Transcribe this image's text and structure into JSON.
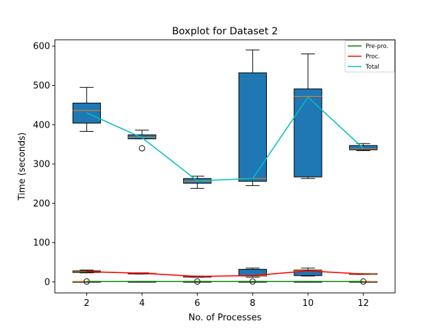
{
  "chart_data": {
    "type": "box",
    "title": "Boxplot for Dataset 2",
    "xlabel": "No. of Processes",
    "ylabel": "Time (seconds)",
    "x": [
      2,
      4,
      6,
      8,
      10,
      12
    ],
    "xlim": [
      0.85,
      13.15
    ],
    "ylim": [
      -28,
      616
    ],
    "yticks": [
      0,
      100,
      200,
      300,
      400,
      500,
      600
    ],
    "legend_position": "top-right",
    "colors": {
      "box_fill": "#1f77b4",
      "median": "#ff7f0e",
      "Pre-pro.": "#008000",
      "Proc.": "#ff0000",
      "Total": "#00bfbf"
    },
    "series": [
      {
        "name": "Total",
        "line": [
          430,
          367,
          257,
          263,
          470,
          340
        ],
        "boxes": [
          {
            "x": 2,
            "whisker_low": 383,
            "q1": 404,
            "median": 436,
            "q3": 455,
            "whisker_high": 495,
            "fliers": []
          },
          {
            "x": 4,
            "whisker_low": 364,
            "q1": 364,
            "median": 368,
            "q3": 374,
            "whisker_high": 386,
            "fliers": [
              340
            ]
          },
          {
            "x": 6,
            "whisker_low": 238,
            "q1": 251,
            "median": 256,
            "q3": 263,
            "whisker_high": 269,
            "fliers": []
          },
          {
            "x": 8,
            "whisker_low": 245,
            "q1": 256,
            "median": 263,
            "q3": 532,
            "whisker_high": 590,
            "fliers": []
          },
          {
            "x": 10,
            "whisker_low": 263,
            "q1": 267,
            "median": 472,
            "q3": 491,
            "whisker_high": 580,
            "fliers": []
          },
          {
            "x": 12,
            "whisker_low": 334,
            "q1": 336,
            "median": 338,
            "q3": 347,
            "whisker_high": 352,
            "fliers": []
          }
        ]
      },
      {
        "name": "Proc.",
        "line": [
          26,
          22,
          14,
          16,
          28,
          20
        ],
        "boxes": [
          {
            "x": 2,
            "whisker_low": 23,
            "q1": 24,
            "median": 26,
            "q3": 28,
            "whisker_high": 30,
            "fliers": []
          },
          {
            "x": 4,
            "whisker_low": 20,
            "q1": 21,
            "median": 22,
            "q3": 22,
            "whisker_high": 23,
            "fliers": []
          },
          {
            "x": 6,
            "whisker_low": 12,
            "q1": 13,
            "median": 14,
            "q3": 14,
            "whisker_high": 15,
            "fliers": []
          },
          {
            "x": 8,
            "whisker_low": 12,
            "q1": 15,
            "median": 16,
            "q3": 32,
            "whisker_high": 35,
            "fliers": []
          },
          {
            "x": 10,
            "whisker_low": 15,
            "q1": 16,
            "median": 28,
            "q3": 30,
            "whisker_high": 35,
            "fliers": []
          },
          {
            "x": 12,
            "whisker_low": 19,
            "q1": 19,
            "median": 20,
            "q3": 21,
            "whisker_high": 21,
            "fliers": []
          }
        ]
      },
      {
        "name": "Pre-pro.",
        "line": [
          1,
          1,
          1,
          1,
          1,
          1
        ],
        "boxes": [
          {
            "x": 2,
            "whisker_low": 0,
            "q1": 0,
            "median": 1,
            "q3": 1,
            "whisker_high": 1,
            "fliers": [
              1
            ]
          },
          {
            "x": 4,
            "whisker_low": 0,
            "q1": 0,
            "median": 1,
            "q3": 1,
            "whisker_high": 1,
            "fliers": []
          },
          {
            "x": 6,
            "whisker_low": 0,
            "q1": 0,
            "median": 1,
            "q3": 1,
            "whisker_high": 1,
            "fliers": [
              1
            ]
          },
          {
            "x": 8,
            "whisker_low": 0,
            "q1": 0,
            "median": 1,
            "q3": 1,
            "whisker_high": 1,
            "fliers": [
              1
            ]
          },
          {
            "x": 10,
            "whisker_low": 0,
            "q1": 0,
            "median": 1,
            "q3": 1,
            "whisker_high": 1,
            "fliers": []
          },
          {
            "x": 12,
            "whisker_low": 0,
            "q1": 0,
            "median": 1,
            "q3": 1,
            "whisker_high": 1,
            "fliers": [
              1
            ]
          }
        ]
      }
    ],
    "legend": [
      "Pre-pro.",
      "Proc.",
      "Total"
    ]
  }
}
